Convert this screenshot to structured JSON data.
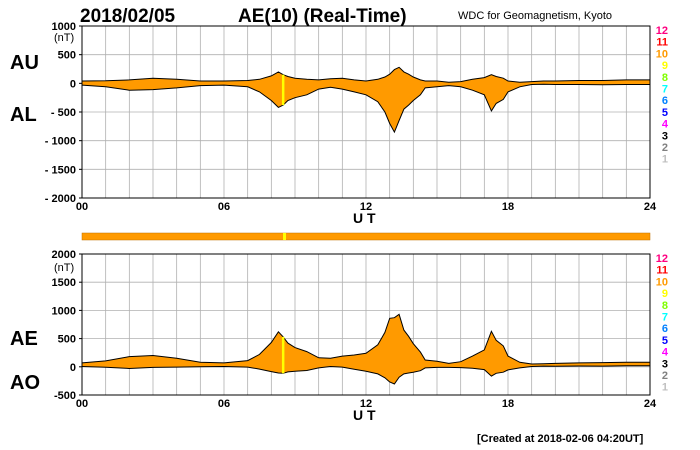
{
  "header": {
    "date": "2018/02/05",
    "title": "AE(10) (Real-Time)",
    "source": "WDC for Geomagnetism, Kyoto"
  },
  "footer": {
    "created": "[Created at 2018-02-06 04:20UT]"
  },
  "colors": {
    "fill": "#ff9a00",
    "line": "#000000",
    "highlight": "#ffff00",
    "bar": "#ff9a00"
  },
  "station_numbers": [
    "12",
    "11",
    "10",
    "9",
    "8",
    "7",
    "6",
    "5",
    "4",
    "3",
    "2",
    "1"
  ],
  "station_colors": [
    "#ff0080",
    "#ff0000",
    "#ff9a00",
    "#ffff00",
    "#80ff00",
    "#00ffff",
    "#0080ff",
    "#0000ff",
    "#ff00ff",
    "#000000",
    "#808080",
    "#c0c0c0"
  ],
  "chart_data": [
    {
      "type": "area",
      "panel": "top",
      "title": "AE(10) (Real-Time)",
      "xlabel": "U T",
      "ylabel": "(nT)",
      "side_labels": [
        "AU",
        "AL"
      ],
      "xlim": [
        0,
        24
      ],
      "ylim": [
        -2000,
        1000
      ],
      "xticks": [
        "00",
        "06",
        "12",
        "18",
        "24"
      ],
      "yticks": [
        "1000",
        "500",
        "0",
        "- 500",
        "- 1000",
        "- 1500",
        "- 2000"
      ],
      "x": [
        0,
        1,
        2,
        3,
        4,
        5,
        6,
        7,
        7.5,
        8,
        8.3,
        8.5,
        8.7,
        9,
        9.5,
        10,
        10.5,
        11,
        11.5,
        12,
        12.5,
        12.8,
        13,
        13.2,
        13.4,
        13.6,
        13.8,
        14,
        14.3,
        14.5,
        15,
        15.5,
        16,
        16.5,
        17,
        17.3,
        17.5,
        17.8,
        18,
        18.5,
        19,
        19.5,
        20,
        21,
        22,
        23,
        24
      ],
      "series": [
        {
          "name": "AU",
          "values": [
            40,
            45,
            60,
            90,
            70,
            40,
            40,
            50,
            70,
            130,
            200,
            150,
            120,
            90,
            70,
            60,
            80,
            90,
            60,
            40,
            70,
            110,
            160,
            240,
            280,
            200,
            160,
            110,
            60,
            40,
            40,
            20,
            30,
            70,
            100,
            150,
            120,
            90,
            40,
            20,
            30,
            40,
            40,
            50,
            50,
            60,
            60
          ]
        },
        {
          "name": "AL",
          "values": [
            -30,
            -60,
            -120,
            -110,
            -80,
            -40,
            -30,
            -60,
            -150,
            -300,
            -420,
            -380,
            -300,
            -250,
            -200,
            -100,
            -70,
            -100,
            -150,
            -200,
            -320,
            -500,
            -700,
            -850,
            -650,
            -450,
            -380,
            -300,
            -200,
            -80,
            -60,
            -40,
            -60,
            -120,
            -200,
            -480,
            -350,
            -280,
            -150,
            -60,
            -20,
            -15,
            -20,
            -20,
            -25,
            -20,
            -20
          ]
        }
      ]
    },
    {
      "type": "area",
      "panel": "bottom",
      "xlabel": "U T",
      "ylabel": "(nT)",
      "side_labels": [
        "AE",
        "AO"
      ],
      "xlim": [
        0,
        24
      ],
      "ylim": [
        -500,
        2000
      ],
      "xticks": [
        "00",
        "06",
        "12",
        "18",
        "24"
      ],
      "yticks": [
        "2000",
        "1500",
        "1000",
        "500",
        "0",
        "-500"
      ],
      "x": [
        0,
        1,
        2,
        3,
        4,
        5,
        6,
        7,
        7.5,
        8,
        8.3,
        8.5,
        8.7,
        9,
        9.5,
        10,
        10.5,
        11,
        11.5,
        12,
        12.5,
        12.8,
        13,
        13.2,
        13.4,
        13.6,
        13.8,
        14,
        14.3,
        14.5,
        15,
        15.5,
        16,
        16.5,
        17,
        17.3,
        17.5,
        17.8,
        18,
        18.5,
        19,
        19.5,
        20,
        21,
        22,
        23,
        24
      ],
      "series": [
        {
          "name": "AE",
          "values": [
            70,
            105,
            180,
            200,
            150,
            80,
            70,
            110,
            220,
            430,
            620,
            530,
            420,
            340,
            270,
            160,
            150,
            190,
            210,
            240,
            390,
            610,
            860,
            870,
            930,
            650,
            540,
            410,
            260,
            120,
            100,
            60,
            90,
            190,
            300,
            630,
            470,
            370,
            190,
            80,
            50,
            55,
            60,
            70,
            75,
            80,
            80
          ]
        },
        {
          "name": "AO",
          "values": [
            5,
            -8,
            -30,
            -10,
            -5,
            0,
            5,
            -5,
            -40,
            -85,
            -110,
            -115,
            -90,
            -80,
            -65,
            -20,
            5,
            -5,
            -45,
            -80,
            -125,
            -195,
            -270,
            -305,
            -185,
            -125,
            -110,
            -95,
            -70,
            -20,
            -10,
            -10,
            -15,
            -25,
            -50,
            -165,
            -115,
            -95,
            -55,
            -20,
            5,
            12,
            10,
            15,
            12,
            20,
            20
          ]
        }
      ]
    }
  ]
}
